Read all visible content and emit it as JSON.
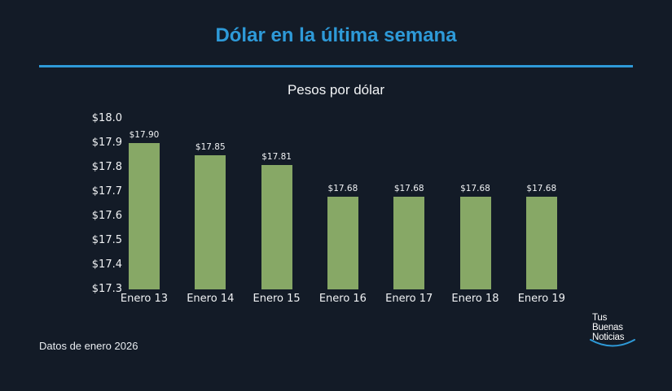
{
  "header": {
    "title": "Dólar en la última semana",
    "accent_color": "#2e9ad8"
  },
  "footer": {
    "note": "Datos de enero 2026",
    "logo_lines": [
      "Tus",
      "Buenas",
      "Noticias"
    ]
  },
  "chart_data": {
    "type": "bar",
    "title": "Pesos por dólar",
    "xlabel": "",
    "ylabel": "",
    "categories": [
      "Enero 13",
      "Enero 14",
      "Enero 15",
      "Enero 16",
      "Enero 17",
      "Enero 18",
      "Enero 19"
    ],
    "values": [
      17.9,
      17.85,
      17.81,
      17.68,
      17.68,
      17.68,
      17.68
    ],
    "value_labels": [
      "$17.90",
      "$17.85",
      "$17.81",
      "$17.68",
      "$17.68",
      "$17.68",
      "$17.68"
    ],
    "ylim": [
      17.3,
      18.0
    ],
    "yticks": [
      "$18.0",
      "$17.9",
      "$17.8",
      "$17.7",
      "$17.6",
      "$17.5",
      "$17.4",
      "$17.3"
    ],
    "bar_color": "#87a866",
    "grid": false,
    "legend": null
  }
}
